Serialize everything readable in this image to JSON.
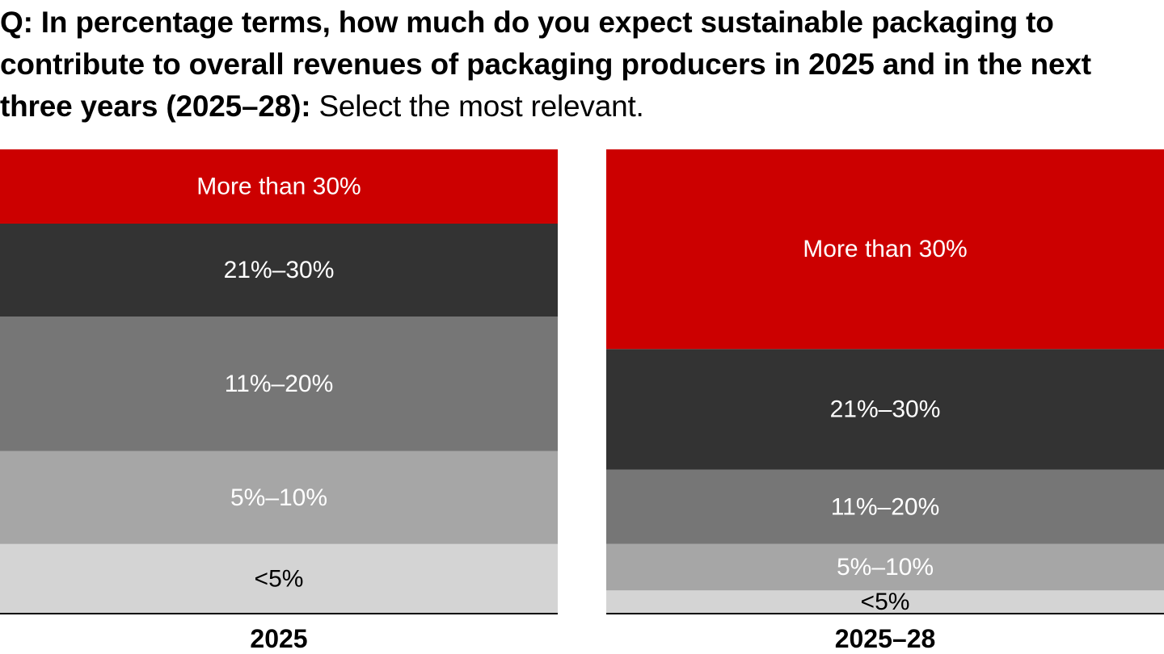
{
  "question": {
    "bold_text": "Q: In percentage terms, how much do you expect sustainable packaging to contribute to overall revenues of packaging producers in 2025 and in the next three years (2025–28):",
    "normal_text": " Select the most relevant."
  },
  "chart_data": {
    "type": "bar",
    "stacked": true,
    "normalized_to_percent": true,
    "title": "Q: In percentage terms, how much do you expect sustainable packaging to contribute to overall revenues of packaging producers in 2025 and in the next three years (2025–28): Select the most relevant.",
    "categories": [
      "2025",
      "2025–28"
    ],
    "series": [
      {
        "name": "<5%",
        "color": "#d4d4d4",
        "text_color": "#000000",
        "values": [
          15,
          5
        ]
      },
      {
        "name": "5%–10%",
        "color": "#a6a6a6",
        "text_color": "#ffffff",
        "values": [
          20,
          10
        ]
      },
      {
        "name": "11%–20%",
        "color": "#767676",
        "text_color": "#ffffff",
        "values": [
          29,
          16
        ]
      },
      {
        "name": "21%–30%",
        "color": "#333333",
        "text_color": "#ffffff",
        "values": [
          20,
          26
        ]
      },
      {
        "name": "More than 30%",
        "color": "#cc0000",
        "text_color": "#ffffff",
        "values": [
          16,
          43
        ]
      }
    ],
    "ylim": [
      0,
      100
    ],
    "xlabel": "",
    "ylabel": "",
    "grid": false,
    "legend": "none"
  }
}
